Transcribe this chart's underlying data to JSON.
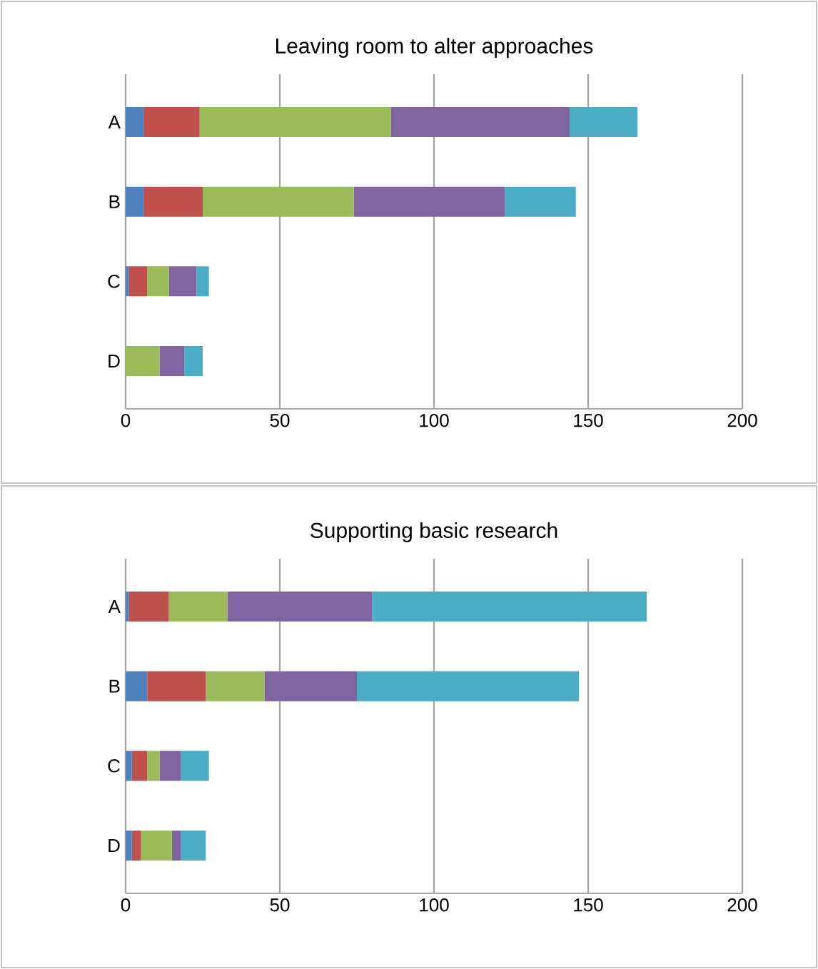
{
  "chart_data": [
    {
      "type": "bar",
      "orientation": "horizontal",
      "stacked": true,
      "title": "Leaving room to alter approaches",
      "categories": [
        "A",
        "B",
        "C",
        "D"
      ],
      "series": [
        {
          "color": "#4f81bd",
          "values": [
            6,
            6,
            1,
            0
          ]
        },
        {
          "color": "#c0504d",
          "values": [
            18,
            19,
            6,
            0
          ]
        },
        {
          "color": "#9bbb59",
          "values": [
            62,
            49,
            7,
            11
          ]
        },
        {
          "color": "#8064a2",
          "values": [
            58,
            49,
            9,
            8
          ]
        },
        {
          "color": "#4bacc6",
          "values": [
            22,
            23,
            4,
            6
          ]
        }
      ],
      "xlim": [
        0,
        200
      ],
      "xticks": [
        0,
        50,
        100,
        150,
        200
      ],
      "grid": "x"
    },
    {
      "type": "bar",
      "orientation": "horizontal",
      "stacked": true,
      "title": "Supporting basic research",
      "categories": [
        "A",
        "B",
        "C",
        "D"
      ],
      "series": [
        {
          "color": "#4f81bd",
          "values": [
            1,
            7,
            2,
            2
          ]
        },
        {
          "color": "#c0504d",
          "values": [
            13,
            19,
            5,
            3
          ]
        },
        {
          "color": "#9bbb59",
          "values": [
            19,
            19,
            4,
            10
          ]
        },
        {
          "color": "#8064a2",
          "values": [
            47,
            30,
            7,
            3
          ]
        },
        {
          "color": "#4bacc6",
          "values": [
            89,
            72,
            9,
            8
          ]
        }
      ],
      "xlim": [
        0,
        200
      ],
      "xticks": [
        0,
        50,
        100,
        150,
        200
      ],
      "grid": "x"
    }
  ]
}
